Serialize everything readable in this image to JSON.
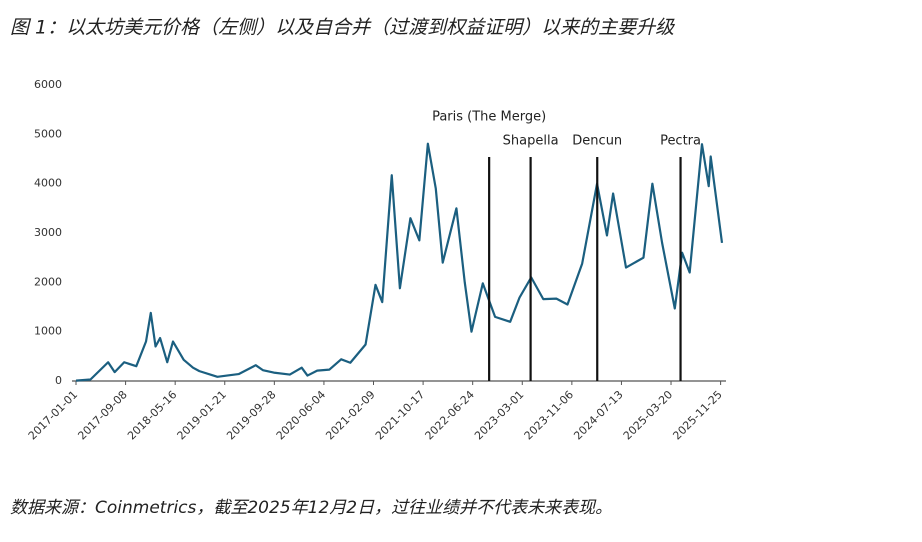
{
  "header": {
    "title": "图 1：以太坊美元价格（左侧）以及自合并（过渡到权益证明）以来的主要升级"
  },
  "footer": {
    "source": "数据来源：Coinmetrics，截至2025年12月2日，过往业绩并不代表未来表现。"
  },
  "chart_data": {
    "type": "line",
    "color": "#1b5f80",
    "x": [
      "2017-01-01",
      "2017-03-15",
      "2017-06-12",
      "2017-07-15",
      "2017-09-01",
      "2017-11-01",
      "2017-12-20",
      "2018-01-13",
      "2018-02-06",
      "2018-03-01",
      "2018-04-06",
      "2018-05-05",
      "2018-06-28",
      "2018-08-14",
      "2018-09-15",
      "2018-11-25",
      "2018-12-15",
      "2019-02-01",
      "2019-04-01",
      "2019-06-26",
      "2019-08-01",
      "2019-09-25",
      "2019-12-15",
      "2020-02-13",
      "2020-03-13",
      "2020-05-01",
      "2020-07-01",
      "2020-08-30",
      "2020-10-15",
      "2020-12-31",
      "2021-02-19",
      "2021-03-25",
      "2021-05-12",
      "2021-06-22",
      "2021-08-14",
      "2021-09-28",
      "2021-11-10",
      "2021-12-20",
      "2022-01-24",
      "2022-04-03",
      "2022-05-15",
      "2022-06-18",
      "2022-08-14",
      "2022-10-15",
      "2022-12-30",
      "2023-02-15",
      "2023-04-15",
      "2023-06-15",
      "2023-08-20",
      "2023-10-15",
      "2023-12-28",
      "2024-03-12",
      "2024-05-01",
      "2024-06-01",
      "2024-08-05",
      "2024-11-01",
      "2024-12-16",
      "2025-02-03",
      "2025-04-08",
      "2025-05-15",
      "2025-06-22",
      "2025-08-23",
      "2025-09-26",
      "2025-10-06",
      "2025-12-02"
    ],
    "values": [
      8,
      30,
      380,
      180,
      380,
      300,
      800,
      1380,
      700,
      870,
      380,
      800,
      430,
      270,
      200,
      110,
      85,
      110,
      140,
      320,
      220,
      170,
      130,
      270,
      110,
      210,
      230,
      440,
      370,
      740,
      1950,
      1600,
      4170,
      1880,
      3300,
      2850,
      4810,
      3900,
      2400,
      3500,
      2000,
      1000,
      1980,
      1300,
      1200,
      1690,
      2100,
      1660,
      1670,
      1550,
      2380,
      4000,
      2950,
      3800,
      2300,
      2500,
      4000,
      2800,
      1470,
      2600,
      2200,
      4800,
      3950,
      4550,
      2800
    ],
    "xlim": [
      "2017-01-01",
      "2025-12-02"
    ],
    "xticks": [
      "2017-01-01",
      "2017-09-08",
      "2018-05-16",
      "2019-01-21",
      "2019-09-28",
      "2020-06-04",
      "2021-02-09",
      "2021-10-17",
      "2022-06-24",
      "2023-03-01",
      "2023-11-06",
      "2024-07-13",
      "2025-03-20",
      "2025-11-25"
    ],
    "ylim": [
      0,
      6000
    ],
    "yticks": [
      0,
      1000,
      2000,
      3000,
      4000,
      5000,
      6000
    ],
    "annotations": [
      {
        "label": "Paris (The Merge)",
        "x": "2022-09-15"
      },
      {
        "label": "Shapella",
        "x": "2023-04-12"
      },
      {
        "label": "Dencun",
        "x": "2024-03-13"
      },
      {
        "label": "Pectra",
        "x": "2025-05-07"
      }
    ]
  }
}
